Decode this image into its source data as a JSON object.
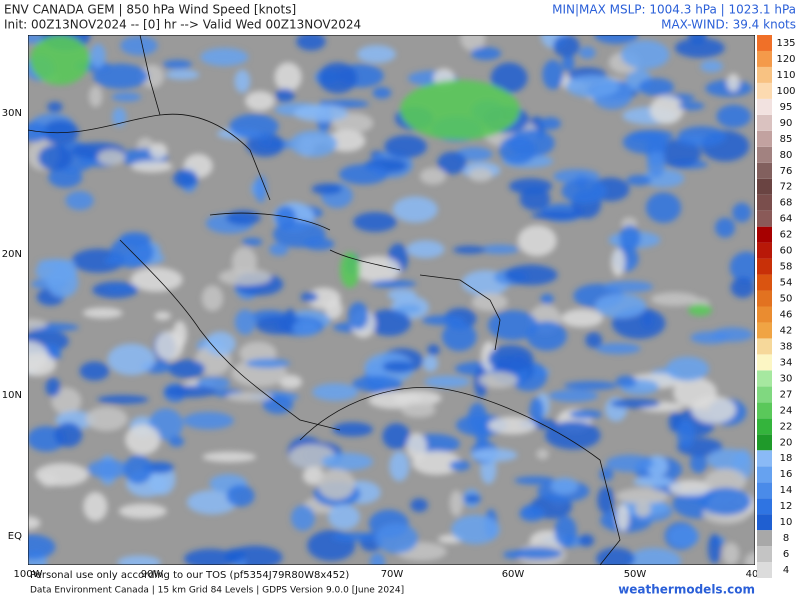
{
  "header": {
    "title": "ENV CANADA GEM | 850 hPa Wind Speed [knots]",
    "init": "Init: 00Z13NOV2024 -- [0] hr --> Valid Wed 00Z13NOV2024",
    "mslp": "MIN|MAX MSLP: 1004.3 hPa | 1023.1 hPa",
    "max_wind": "MAX-WIND: 39.4 knots"
  },
  "map": {
    "lat_labels": [
      "30N",
      "20N",
      "10N",
      "EQ"
    ],
    "lon_labels": [
      "100W",
      "90W",
      "70W",
      "60W",
      "50W",
      "40"
    ]
  },
  "colorbar": [
    {
      "label": "4",
      "color": "#dcdcdc"
    },
    {
      "label": "6",
      "color": "#c4c4c4"
    },
    {
      "label": "8",
      "color": "#a8a8a8"
    },
    {
      "label": "10",
      "color": "#1f5fd1"
    },
    {
      "label": "12",
      "color": "#2f74e2"
    },
    {
      "label": "14",
      "color": "#4a8be9"
    },
    {
      "label": "16",
      "color": "#66a2f0"
    },
    {
      "label": "18",
      "color": "#8abaf6"
    },
    {
      "label": "20",
      "color": "#1f9a2a"
    },
    {
      "label": "22",
      "color": "#34b43c"
    },
    {
      "label": "24",
      "color": "#5ac85a"
    },
    {
      "label": "27",
      "color": "#80d880"
    },
    {
      "label": "30",
      "color": "#a6e8a0"
    },
    {
      "label": "34",
      "color": "#fcf6c4"
    },
    {
      "label": "38",
      "color": "#f6d89a"
    },
    {
      "label": "42",
      "color": "#f0a444"
    },
    {
      "label": "46",
      "color": "#ea8c30"
    },
    {
      "label": "50",
      "color": "#e27220"
    },
    {
      "label": "54",
      "color": "#da5410"
    },
    {
      "label": "58",
      "color": "#c83008"
    },
    {
      "label": "60",
      "color": "#b81808"
    },
    {
      "label": "62",
      "color": "#a60000"
    },
    {
      "label": "64",
      "color": "#8a5a58"
    },
    {
      "label": "68",
      "color": "#7a4e4c"
    },
    {
      "label": "72",
      "color": "#6a4442"
    },
    {
      "label": "76",
      "color": "#82605e"
    },
    {
      "label": "80",
      "color": "#a28280"
    },
    {
      "label": "85",
      "color": "#c2a2a0"
    },
    {
      "label": "90",
      "color": "#dac2c0"
    },
    {
      "label": "95",
      "color": "#f2e2e0"
    },
    {
      "label": "100",
      "color": "#fcdab0"
    },
    {
      "label": "110",
      "color": "#f8c282"
    },
    {
      "label": "120",
      "color": "#f49a4a"
    },
    {
      "label": "135",
      "color": "#f07028"
    }
  ],
  "footer": {
    "tos": "Personal use only according to our TOS (pf5354J79R80W8x452)",
    "source": "Data Environment Canada | 15 km Grid 84 Levels | GDPS Version 9.0.0 [June 2024]",
    "site": "weathermodels.com"
  }
}
